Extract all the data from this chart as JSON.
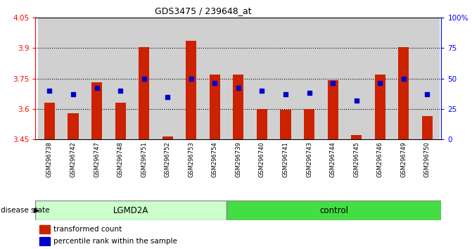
{
  "title": "GDS3475 / 239648_at",
  "samples": [
    "GSM296738",
    "GSM296742",
    "GSM296747",
    "GSM296748",
    "GSM296751",
    "GSM296752",
    "GSM296753",
    "GSM296754",
    "GSM296739",
    "GSM296740",
    "GSM296741",
    "GSM296743",
    "GSM296744",
    "GSM296745",
    "GSM296746",
    "GSM296749",
    "GSM296750"
  ],
  "bar_values": [
    3.63,
    3.58,
    3.73,
    3.63,
    3.905,
    3.465,
    3.935,
    3.77,
    3.77,
    3.6,
    3.595,
    3.6,
    3.74,
    3.47,
    3.77,
    3.905,
    3.565
  ],
  "percentile_values": [
    40,
    37,
    42,
    40,
    50,
    35,
    50,
    46,
    42,
    40,
    37,
    38,
    46,
    32,
    46,
    50,
    37
  ],
  "ymin": 3.45,
  "ymax": 4.05,
  "yticks_left": [
    3.45,
    3.6,
    3.75,
    3.9,
    4.05
  ],
  "yticks_right": [
    0,
    25,
    50,
    75,
    100
  ],
  "bar_color": "#cc2200",
  "dot_color": "#0000cc",
  "grid_values": [
    3.6,
    3.75,
    3.9
  ],
  "lgmd2a_count": 8,
  "control_count": 9,
  "group1_label": "LGMD2A",
  "group2_label": "control",
  "group1_color_light": "#ccffcc",
  "group2_color": "#44dd44",
  "legend1": "transformed count",
  "legend2": "percentile rank within the sample",
  "disease_label": "disease state",
  "col_bg_color": "#d0d0d0",
  "plot_bg_color": "#ffffff"
}
